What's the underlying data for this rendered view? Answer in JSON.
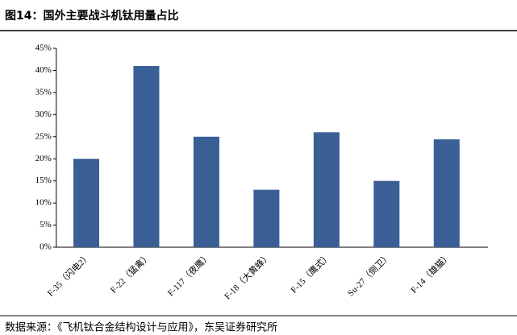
{
  "chart_data": {
    "type": "bar",
    "title": "图14：国外主要战斗机钛用量占比",
    "source": "数据来源：《飞机钛合金结构设计与应用》，东吴证券研究所",
    "categories": [
      "F-35（闪电2）",
      "F-22（猛禽）",
      "F-117（夜鹰）",
      "F-18（大黄蜂）",
      "F-15（鹰式）",
      "Su-27（侧卫）",
      "F-14（雄猫）"
    ],
    "values": [
      20,
      41,
      25,
      13,
      26,
      15,
      24.4
    ],
    "color": "#3a5f95",
    "ylim": [
      0,
      45
    ],
    "yticks": [
      {
        "value": 0,
        "label": "0%"
      },
      {
        "value": 5,
        "label": "5%"
      },
      {
        "value": 10,
        "label": "10%"
      },
      {
        "value": 15,
        "label": "15%"
      },
      {
        "value": 20,
        "label": "20%"
      },
      {
        "value": 25,
        "label": "25%"
      },
      {
        "value": 30,
        "label": "30%"
      },
      {
        "value": 35,
        "label": "35%"
      },
      {
        "value": 40,
        "label": "40%"
      },
      {
        "value": 45,
        "label": "45%"
      }
    ],
    "grid": false
  }
}
